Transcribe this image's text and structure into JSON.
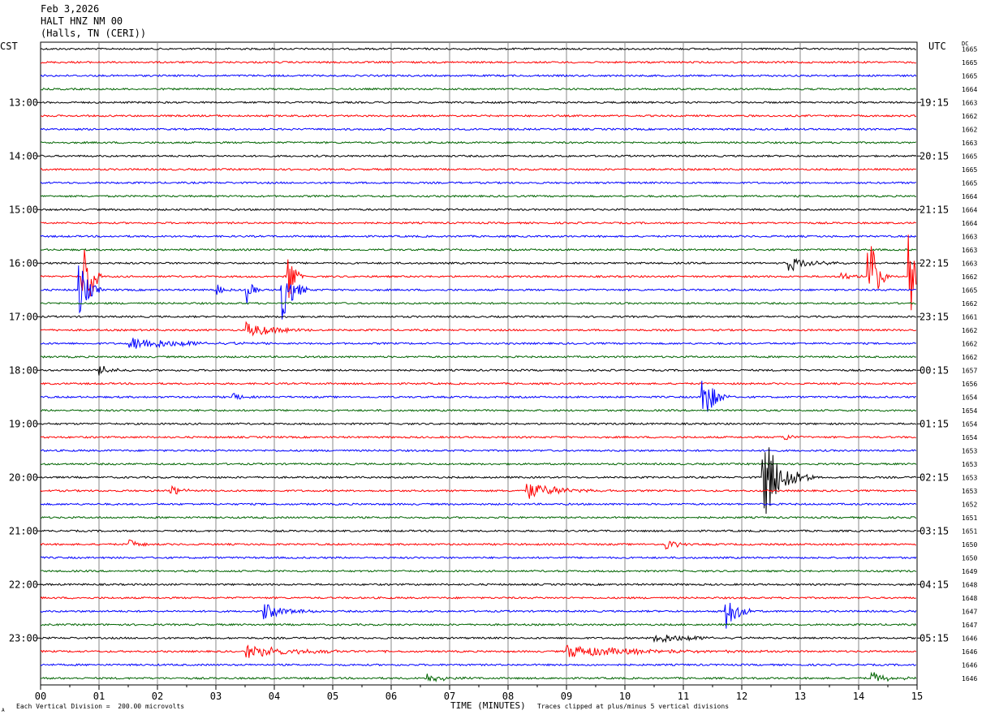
{
  "header": {
    "date": "Feb 3,2026",
    "station": "HALT HNZ NM 00",
    "location": "(Halls, TN (CERI))"
  },
  "left_tz": "CST",
  "right_tz": "UTC",
  "dc_label": "DC",
  "footer": {
    "scale_note": "Each Vertical Division =  200.00 microvolts",
    "clip_note": "Traces clipped at plus/minus 5 vertical divisions",
    "xlabel": "TIME (MINUTES)",
    "corner_mark": "A"
  },
  "colors": {
    "trace_cycle": [
      "#000000",
      "#ff0000",
      "#0000ff",
      "#006400"
    ],
    "grid": "#888888"
  },
  "chart_data": {
    "type": "line",
    "title": "HALT HNZ NM 00",
    "xlabel": "TIME (MINUTES)",
    "xlim": [
      0,
      15
    ],
    "x_ticks": [
      "00",
      "01",
      "02",
      "03",
      "04",
      "05",
      "06",
      "07",
      "08",
      "09",
      "10",
      "11",
      "12",
      "13",
      "14",
      "15"
    ],
    "left_hour_labels": [
      {
        "row": 4,
        "label": "13:00"
      },
      {
        "row": 8,
        "label": "14:00"
      },
      {
        "row": 12,
        "label": "15:00"
      },
      {
        "row": 16,
        "label": "16:00"
      },
      {
        "row": 20,
        "label": "17:00"
      },
      {
        "row": 24,
        "label": "18:00"
      },
      {
        "row": 28,
        "label": "19:00"
      },
      {
        "row": 32,
        "label": "20:00"
      },
      {
        "row": 36,
        "label": "21:00"
      },
      {
        "row": 40,
        "label": "22:00"
      },
      {
        "row": 44,
        "label": "23:00"
      }
    ],
    "right_hour_labels": [
      {
        "row": 4,
        "label": "19:15"
      },
      {
        "row": 8,
        "label": "20:15"
      },
      {
        "row": 12,
        "label": "21:15"
      },
      {
        "row": 16,
        "label": "22:15"
      },
      {
        "row": 20,
        "label": "23:15"
      },
      {
        "row": 24,
        "label": "00:15"
      },
      {
        "row": 28,
        "label": "01:15"
      },
      {
        "row": 32,
        "label": "02:15"
      },
      {
        "row": 36,
        "label": "03:15"
      },
      {
        "row": 40,
        "label": "04:15"
      },
      {
        "row": 44,
        "label": "05:15"
      }
    ],
    "dc_values": [
      "1665",
      "1665",
      "1665",
      "1664",
      "1663",
      "1662",
      "1662",
      "1663",
      "1665",
      "1665",
      "1665",
      "1664",
      "1664",
      "1664",
      "1663",
      "1663",
      "1663",
      "1662",
      "1665",
      "1662",
      "1661",
      "1662",
      "1662",
      "1662",
      "1657",
      "1656",
      "1654",
      "1654",
      "1654",
      "1654",
      "1653",
      "1653",
      "1653",
      "1653",
      "1652",
      "1651",
      "1651",
      "1650",
      "1650",
      "1649",
      "1648",
      "1648",
      "1647",
      "1647",
      "1646",
      "1646",
      "1646",
      "1646"
    ],
    "events": [
      {
        "row": 17,
        "minute": 0.7,
        "amp": 3.5,
        "dur": 0.3
      },
      {
        "row": 17,
        "minute": 0.85,
        "amp": 3.5,
        "dur": 0.2
      },
      {
        "row": 18,
        "minute": 0.65,
        "amp": 2.5,
        "dur": 0.4
      },
      {
        "row": 18,
        "minute": 3.5,
        "amp": 1.4,
        "dur": 0.3
      },
      {
        "row": 18,
        "minute": 4.1,
        "amp": 3.0,
        "dur": 0.5
      },
      {
        "row": 18,
        "minute": 3.0,
        "amp": 0.6,
        "dur": 0.3
      },
      {
        "row": 17,
        "minute": 4.2,
        "amp": 3.0,
        "dur": 0.3
      },
      {
        "row": 21,
        "minute": 3.5,
        "amp": 0.7,
        "dur": 1.2
      },
      {
        "row": 22,
        "minute": 1.5,
        "amp": 0.5,
        "dur": 2.8
      },
      {
        "row": 16,
        "minute": 12.8,
        "amp": 0.6,
        "dur": 1.0
      },
      {
        "row": 17,
        "minute": 13.7,
        "amp": 0.5,
        "dur": 0.4
      },
      {
        "row": 17,
        "minute": 14.15,
        "amp": 4.0,
        "dur": 0.4
      },
      {
        "row": 17,
        "minute": 14.85,
        "amp": 4.5,
        "dur": 0.3
      },
      {
        "row": 26,
        "minute": 11.3,
        "amp": 2.5,
        "dur": 0.5
      },
      {
        "row": 26,
        "minute": 3.25,
        "amp": 0.6,
        "dur": 0.4
      },
      {
        "row": 24,
        "minute": 1.0,
        "amp": 0.4,
        "dur": 0.6
      },
      {
        "row": 32,
        "minute": 12.35,
        "amp": 3.5,
        "dur": 0.9
      },
      {
        "row": 33,
        "minute": 8.3,
        "amp": 0.7,
        "dur": 1.5
      },
      {
        "row": 33,
        "minute": 2.2,
        "amp": 0.5,
        "dur": 0.6
      },
      {
        "row": 29,
        "minute": 12.7,
        "amp": 0.4,
        "dur": 0.4
      },
      {
        "row": 42,
        "minute": 11.7,
        "amp": 1.6,
        "dur": 0.6
      },
      {
        "row": 42,
        "minute": 3.8,
        "amp": 0.6,
        "dur": 1.2
      },
      {
        "row": 45,
        "minute": 3.5,
        "amp": 0.5,
        "dur": 2.5
      },
      {
        "row": 45,
        "minute": 9.0,
        "amp": 0.5,
        "dur": 3.5
      },
      {
        "row": 44,
        "minute": 10.5,
        "amp": 0.4,
        "dur": 2.0
      },
      {
        "row": 47,
        "minute": 6.6,
        "amp": 0.5,
        "dur": 0.8
      },
      {
        "row": 47,
        "minute": 14.2,
        "amp": 0.5,
        "dur": 0.8
      },
      {
        "row": 37,
        "minute": 1.5,
        "amp": 0.5,
        "dur": 0.5
      },
      {
        "row": 37,
        "minute": 10.7,
        "amp": 0.5,
        "dur": 0.5
      }
    ],
    "grid": true,
    "legend": "none"
  }
}
